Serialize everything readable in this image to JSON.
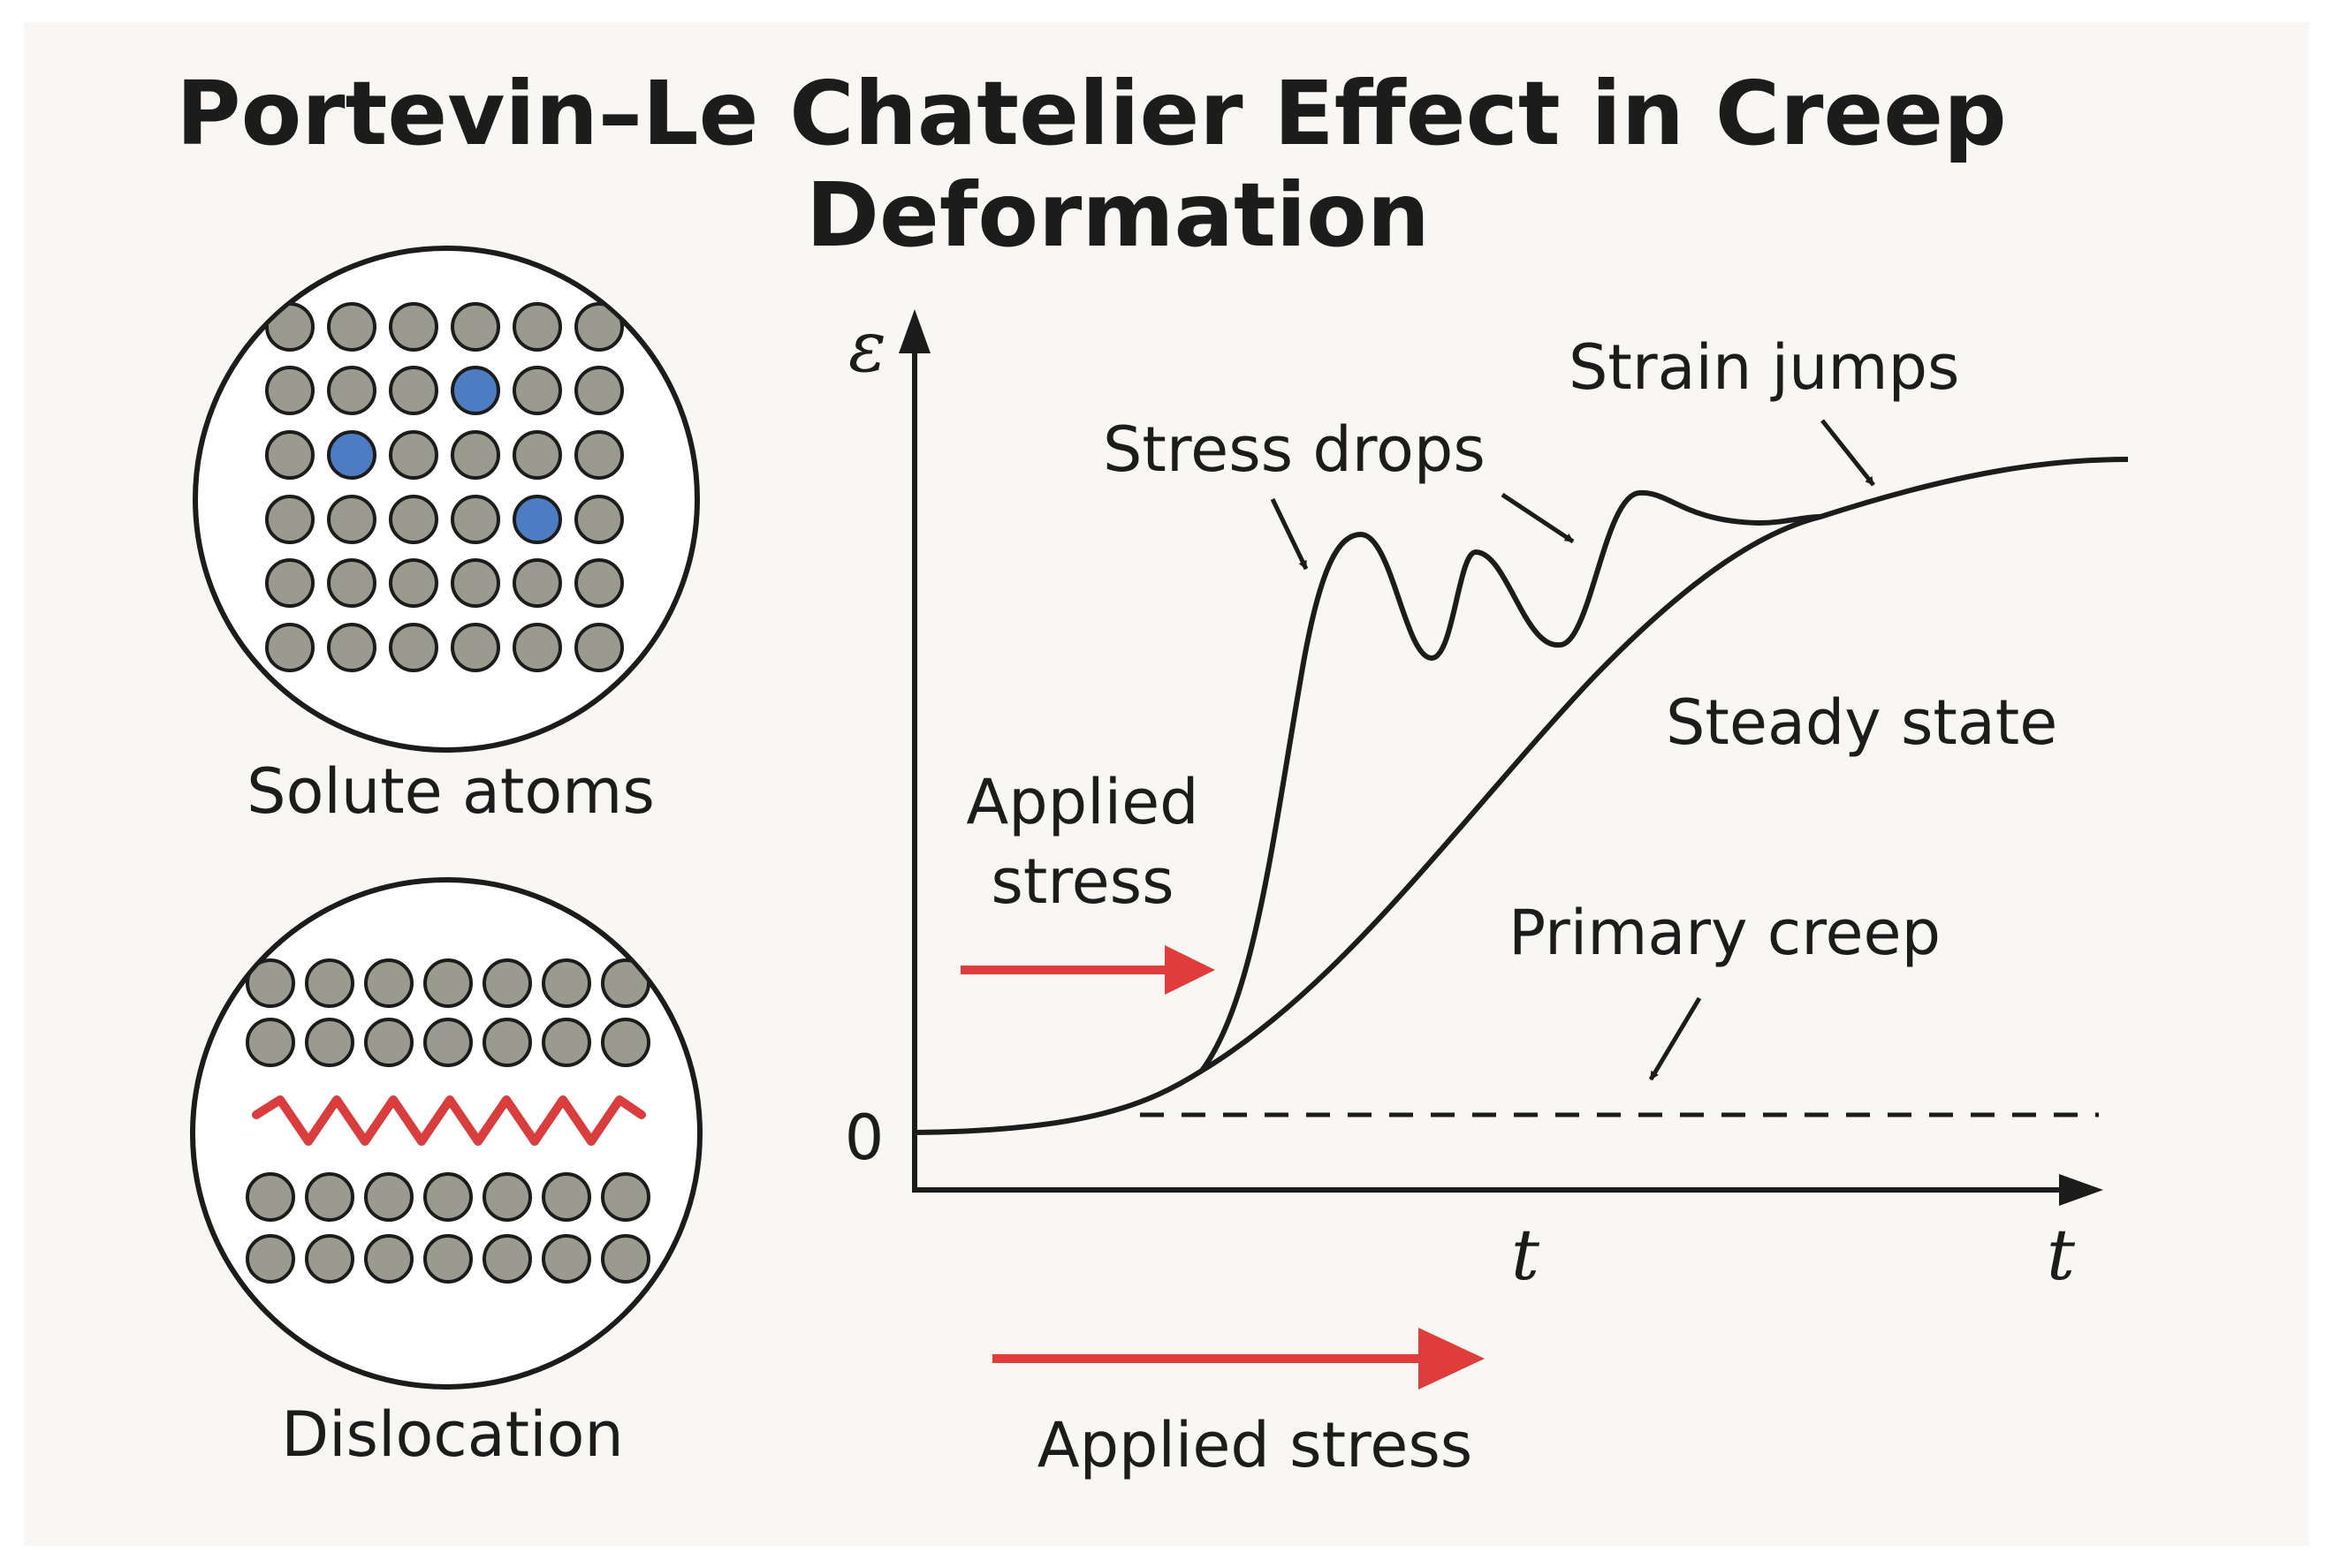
{
  "title": {
    "line1": "Portevin–Le Chatelier Effect in Creep",
    "line2": "Deformation"
  },
  "insets": {
    "solute": {
      "label": "Solute atoms"
    },
    "dislocation": {
      "label": "Dislocation"
    }
  },
  "graph": {
    "y_axis_symbol": "ε",
    "origin_label": "0",
    "x_tick_label": "t",
    "x_axis_symbol": "t",
    "annotations": {
      "stress_drops": "Stress drops",
      "strain_jumps": "Strain jumps",
      "steady_state": "Steady state",
      "primary_creep": "Primary creep",
      "applied_stress_line1": "Applied",
      "applied_stress_line2": "stress"
    }
  },
  "bottom_label": "Applied stress",
  "colors": {
    "atom": "#9a9a8e",
    "solute_atom": "#4d7cc2",
    "dislocation_line": "#d93d3d",
    "arrow_red": "#e03c3c",
    "ink": "#1c1c1c",
    "background": "#f9f7f3"
  }
}
